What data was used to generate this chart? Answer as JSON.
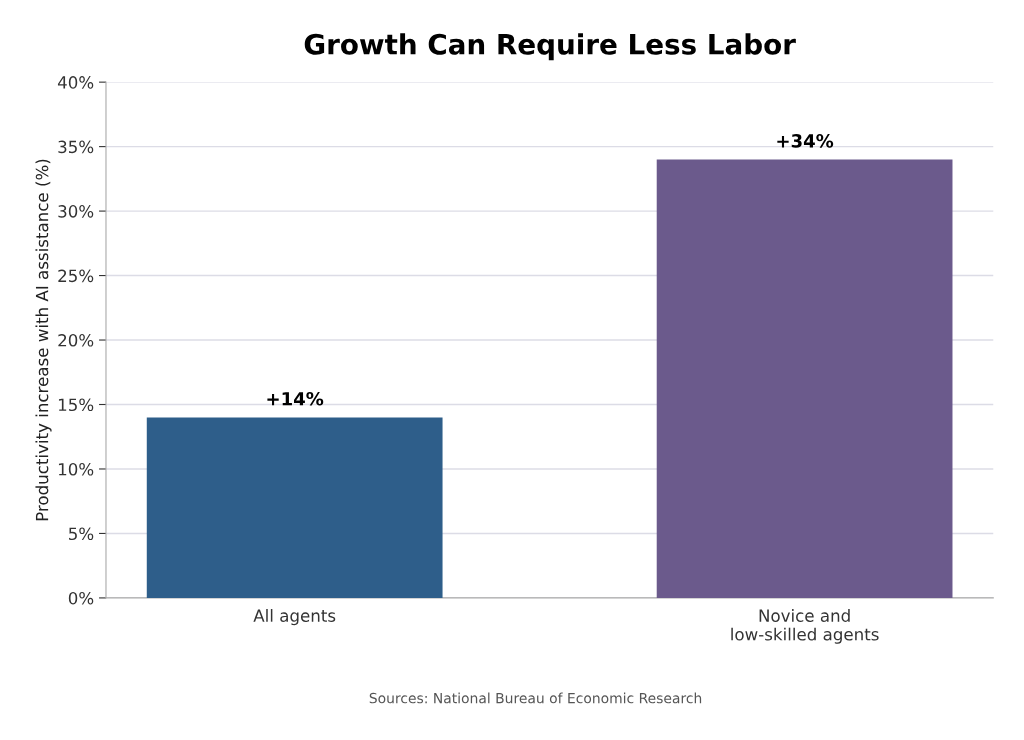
{
  "chart_data": {
    "type": "bar",
    "title": "Growth Can Require Less Labor",
    "ylabel": "Productivity increase with AI assistance (%)",
    "categories": [
      "All agents",
      "Novice and\nlow-skilled agents"
    ],
    "values": [
      14,
      34
    ],
    "colors": [
      "#2e5e8a",
      "#6b5a8c"
    ],
    "value_labels": [
      "+14%",
      "+34%"
    ],
    "ylim": [
      0,
      40
    ],
    "yticks": [
      {
        "value": 0,
        "label": "0%"
      },
      {
        "value": 5,
        "label": "5%"
      },
      {
        "value": 10,
        "label": "10%"
      },
      {
        "value": 15,
        "label": "15%"
      },
      {
        "value": 20,
        "label": "20%"
      },
      {
        "value": 25,
        "label": "25%"
      },
      {
        "value": 30,
        "label": "30%"
      },
      {
        "value": 35,
        "label": "35%"
      },
      {
        "value": 40,
        "label": "40%"
      }
    ],
    "grid": "y",
    "legend": false,
    "annotations": [
      "Sources: National Bureau of Economic Research"
    ]
  }
}
